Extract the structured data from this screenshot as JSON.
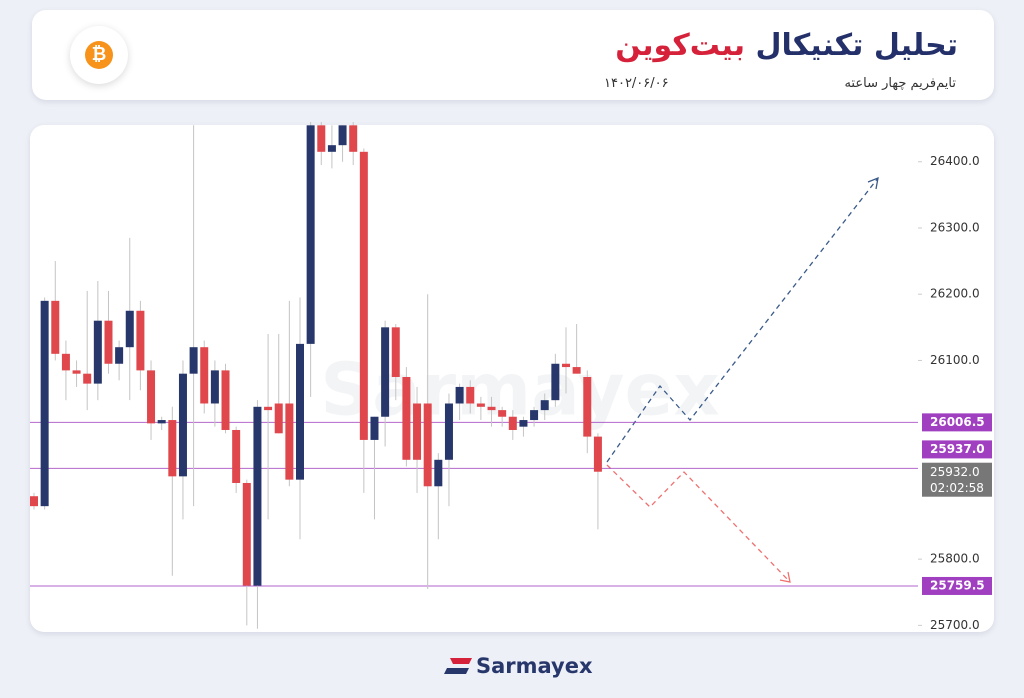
{
  "header": {
    "icon": "₿",
    "title_part1": "تحلیل تکنیکال",
    "title_part2": "بیت‌کوین",
    "subtitle": "تایم‌فریم چهار ساعته",
    "date": "۱۴۰۲/۰۶/۰۶"
  },
  "chart_data": {
    "type": "candlestick",
    "watermark": "Sarmayex",
    "up_color": "#27376b",
    "down_color": "#e0474c",
    "level_color": "#a040c0",
    "ylim": [
      25690,
      26460
    ],
    "yticks": [
      {
        "value": 26400,
        "label": "26400.0"
      },
      {
        "value": 26300,
        "label": "26300.0"
      },
      {
        "value": 26200,
        "label": "26200.0"
      },
      {
        "value": 26100,
        "label": "26100.0"
      },
      {
        "value": 25800,
        "label": "25800.0"
      },
      {
        "value": 25700,
        "label": "25700.0"
      }
    ],
    "levels": [
      26006.5,
      {
        "value": 25937,
        "label": "25937.0"
      },
      25759.5
    ],
    "current_price": {
      "value": 25932,
      "label": "25932.0",
      "countdown": "02:02:58"
    },
    "candles": [
      [
        25895,
        25900,
        25875,
        25880
      ],
      [
        25880,
        26195,
        25875,
        26190
      ],
      [
        26190,
        26250,
        26100,
        26110
      ],
      [
        26110,
        26130,
        26040,
        26085
      ],
      [
        26085,
        26100,
        26060,
        26080
      ],
      [
        26080,
        26205,
        26025,
        26065
      ],
      [
        26065,
        26220,
        26040,
        26160
      ],
      [
        26160,
        26205,
        26080,
        26095
      ],
      [
        26095,
        26130,
        26070,
        26120
      ],
      [
        26120,
        26285,
        26040,
        26175
      ],
      [
        26175,
        26190,
        26055,
        26085
      ],
      [
        26085,
        26100,
        25980,
        26005
      ],
      [
        26005,
        26015,
        25995,
        26010
      ],
      [
        26010,
        26030,
        25775,
        25925
      ],
      [
        25925,
        26100,
        25860,
        26080
      ],
      [
        26080,
        26455,
        25880,
        26120
      ],
      [
        26120,
        26130,
        26020,
        26035
      ],
      [
        26035,
        26100,
        26000,
        26085
      ],
      [
        26085,
        26095,
        25990,
        25995
      ],
      [
        25995,
        26000,
        25900,
        25915
      ],
      [
        25915,
        25920,
        25700,
        25760
      ],
      [
        25760,
        26040,
        25695,
        26030
      ],
      [
        26030,
        26140,
        25860,
        26025
      ],
      [
        26035,
        26140,
        25990,
        25990
      ],
      [
        26035,
        26190,
        25910,
        25920
      ],
      [
        25920,
        26195,
        25830,
        26125
      ],
      [
        26125,
        26460,
        26045,
        26455
      ],
      [
        26455,
        26460,
        26395,
        26415
      ],
      [
        26415,
        26455,
        26390,
        26425
      ],
      [
        26425,
        26455,
        26400,
        26455
      ],
      [
        26455,
        26460,
        26395,
        26415
      ],
      [
        26415,
        26420,
        25900,
        25980
      ],
      [
        25980,
        26015,
        25860,
        26015
      ],
      [
        26015,
        26160,
        25970,
        26150
      ],
      [
        26150,
        26155,
        26040,
        26075
      ],
      [
        26075,
        26090,
        25940,
        25950
      ],
      [
        26035,
        26060,
        25900,
        25950
      ],
      [
        26035,
        26200,
        25755,
        25910
      ],
      [
        25910,
        25960,
        25830,
        25950
      ],
      [
        25950,
        26050,
        25880,
        26035
      ],
      [
        26035,
        26065,
        26010,
        26060
      ],
      [
        26060,
        26070,
        26020,
        26035
      ],
      [
        26035,
        26045,
        26010,
        26030
      ],
      [
        26030,
        26045,
        26000,
        26025
      ],
      [
        26025,
        26030,
        26000,
        26015
      ],
      [
        26015,
        26025,
        25980,
        25995
      ],
      [
        26000,
        26015,
        25985,
        26010
      ],
      [
        26010,
        26030,
        26000,
        26025
      ],
      [
        26025,
        26050,
        26010,
        26040
      ],
      [
        26040,
        26110,
        26030,
        26095
      ],
      [
        26095,
        26150,
        26050,
        26090
      ],
      [
        26090,
        26155,
        26080,
        26080
      ],
      [
        26075,
        26085,
        25960,
        25985
      ],
      [
        25985,
        25990,
        25845,
        25932
      ]
    ]
  },
  "footer": {
    "brand": "Sarmayex"
  }
}
